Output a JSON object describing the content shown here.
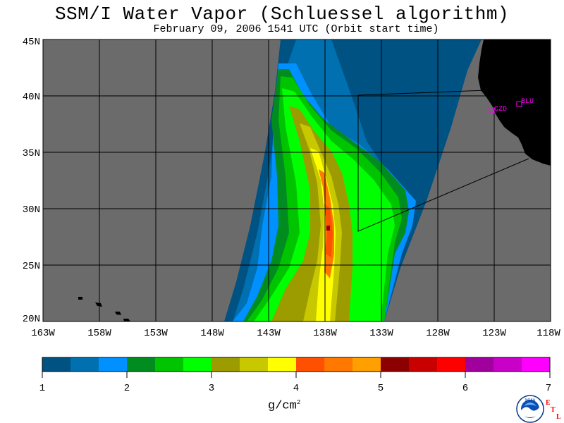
{
  "title": "SSM/I Water Vapor (Schluessel algorithm)",
  "subtitle": "February 09, 2006  1541 UTC  (Orbit start time)",
  "map": {
    "lat_labels": [
      "45N",
      "40N",
      "35N",
      "30N",
      "25N",
      "20N"
    ],
    "lon_labels": [
      "163W",
      "158W",
      "153W",
      "148W",
      "143W",
      "138W",
      "133W",
      "128W",
      "123W",
      "118W"
    ],
    "stations": [
      {
        "id": "CZD",
        "label": "CZD"
      },
      {
        "id": "BLU",
        "label": "BLU"
      }
    ],
    "colors": {
      "no_data": "#6b6b6b",
      "land": "#000000",
      "station": "#ff00ff",
      "grid": "#000000"
    }
  },
  "colorbar": {
    "tick_labels": [
      "1",
      "2",
      "3",
      "4",
      "5",
      "6",
      "7"
    ],
    "unit": "g/cm",
    "unit_exponent": "2",
    "colors": [
      "#005282",
      "#0070b0",
      "#0090ff",
      "#008c1e",
      "#00c400",
      "#00ff00",
      "#9c9c00",
      "#c8c800",
      "#ffff00",
      "#ff5000",
      "#ff7800",
      "#ffa000",
      "#8c0000",
      "#c80000",
      "#ff0000",
      "#a0009c",
      "#c800c8",
      "#ff00ff"
    ]
  },
  "logos": {
    "noaa_text": "NOAA",
    "etl_letters": [
      "E",
      "T",
      "L"
    ]
  }
}
